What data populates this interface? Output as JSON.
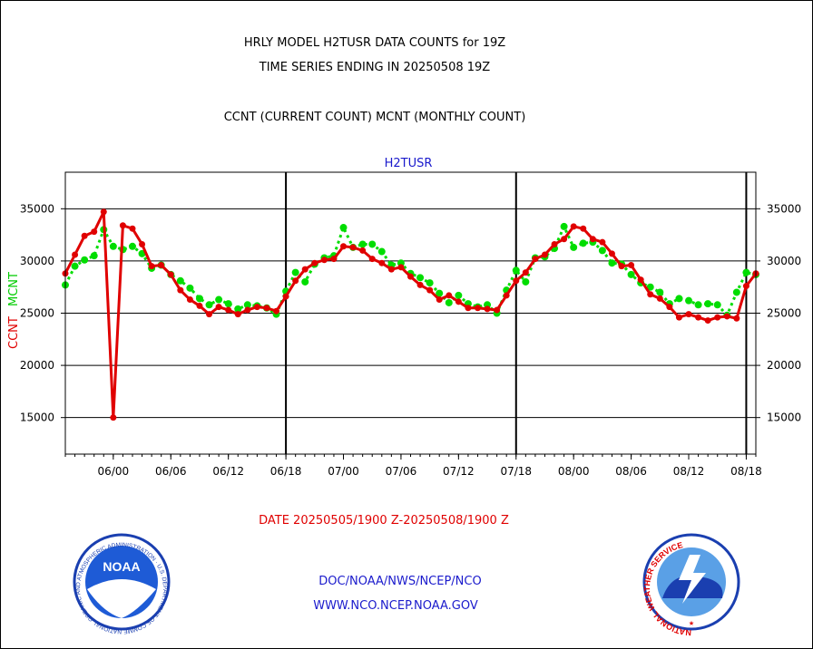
{
  "header": {
    "title_line1": "HRLY MODEL H2TUSR DATA COUNTS for 19Z",
    "title_line2": "TIME SERIES ENDING IN 20250508 19Z",
    "subtitle": "CCNT (CURRENT COUNT) MCNT (MONTHLY COUNT)"
  },
  "footer": {
    "date_range": "DATE 20250505/1900 Z-20250508/1900 Z",
    "link1": "DOC/NOAA/NWS/NCEP/NCO",
    "link2": "WWW.NCO.NCEP.NOAA.GOV"
  },
  "logos": {
    "noaa_text": "NOAA",
    "noaa_ring": "NATIONAL OCEANIC AND ATMOSPHERIC ADMINISTRATION · U.S. DEPARTMENT OF COMMERCE",
    "nws_ring": "NATIONAL WEATHER SERVICE"
  },
  "colors": {
    "ccnt": "#e00000",
    "mcnt": "#00dd00",
    "title_blue": "#1a1acc"
  },
  "chart_data": {
    "type": "line",
    "title": "H2TUSR",
    "ylabel_series": [
      "CCNT",
      "MCNT"
    ],
    "y_ticks": [
      15000,
      20000,
      25000,
      30000,
      35000
    ],
    "y_tick_labels": [
      "15000",
      "20000",
      "25000",
      "30000",
      "35000"
    ],
    "x_tick_labels": [
      "06/00",
      "06/06",
      "06/12",
      "06/18",
      "07/00",
      "07/06",
      "07/12",
      "07/18",
      "08/00",
      "08/06",
      "08/12",
      "08/18"
    ],
    "x_tick_hours": [
      5,
      11,
      17,
      23,
      29,
      35,
      41,
      47,
      53,
      59,
      65,
      71
    ],
    "day_boundaries_hours": [
      23,
      47,
      71
    ],
    "xlim_hours": [
      0,
      72
    ],
    "ylim": [
      11500,
      38500
    ],
    "x_start": "20250505/1900 Z",
    "x_end": "20250508/1900 Z",
    "grid": "horizontal",
    "series": [
      {
        "name": "CCNT",
        "values": [
          28800,
          30600,
          32400,
          32800,
          34700,
          15000,
          33400,
          33100,
          31600,
          29500,
          29600,
          28700,
          27200,
          26300,
          25700,
          24900,
          25600,
          25300,
          24900,
          25300,
          25600,
          25500,
          25200,
          26600,
          28100,
          29200,
          29800,
          30100,
          30200,
          31400,
          31300,
          31000,
          30200,
          29800,
          29200,
          29400,
          28500,
          27700,
          27200,
          26300,
          26700,
          26100,
          25500,
          25500,
          25400,
          25300,
          26700,
          28100,
          28900,
          30200,
          30600,
          31600,
          32100,
          33300,
          33100,
          32100,
          31800,
          30700,
          29500,
          29600,
          28200,
          26800,
          26400,
          25600,
          24600,
          24900,
          24600,
          24300,
          24600,
          24700,
          24500,
          27600,
          28800
        ]
      },
      {
        "name": "MCNT",
        "values": [
          27700,
          29500,
          30100,
          30500,
          33000,
          31400,
          31100,
          31400,
          30700,
          29300,
          29600,
          28700,
          28100,
          27400,
          26400,
          25800,
          26300,
          25900,
          25400,
          25800,
          25700,
          25500,
          24900,
          27100,
          28900,
          28000,
          29700,
          30300,
          30500,
          33200,
          31300,
          31600,
          31600,
          30900,
          29600,
          29800,
          28800,
          28400,
          27900,
          26900,
          26000,
          26700,
          25900,
          25600,
          25800,
          25000,
          27200,
          29100,
          28000,
          30300,
          30400,
          31200,
          33300,
          31300,
          31700,
          31800,
          31000,
          29800,
          29700,
          28700,
          27900,
          27500,
          27000,
          25900,
          26400,
          26200,
          25800,
          25900,
          25800,
          24800,
          27000,
          28900,
          28700
        ]
      }
    ]
  }
}
